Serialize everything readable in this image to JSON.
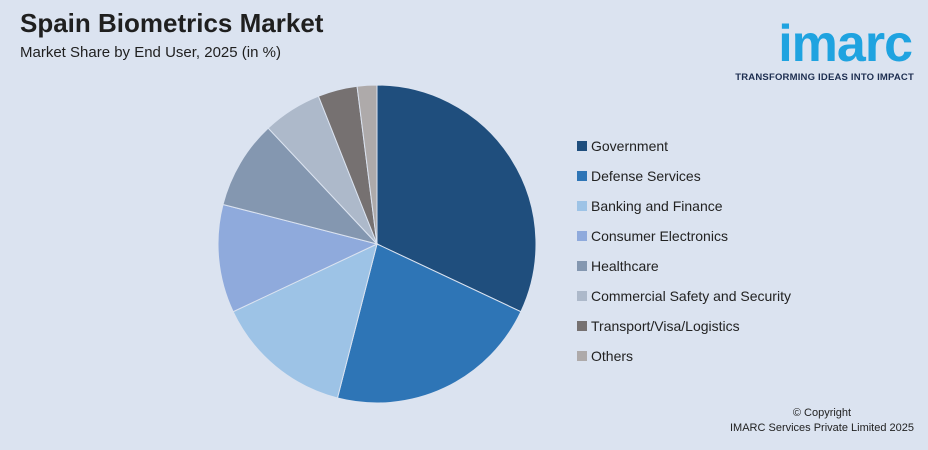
{
  "header": {
    "title": "Spain Biometrics Market",
    "subtitle": "Market Share by End User, 2025 (in %)"
  },
  "logo": {
    "wordmark": "imarc",
    "tagline": "TRANSFORMING IDEAS INTO IMPACT",
    "color": "#1fa3e0"
  },
  "chart_data": {
    "type": "pie",
    "title": "Spain Biometrics Market",
    "subtitle": "Market Share by End User, 2025 (in %)",
    "legend_position": "right",
    "categories": [
      "Government",
      "Defense Services",
      "Banking and Finance",
      "Consumer Electronics",
      "Healthcare",
      "Commercial Safety and Security",
      "Transport/Visa/Logistics",
      "Others"
    ],
    "values": [
      32,
      22,
      14,
      11,
      9,
      6,
      4,
      2
    ],
    "colors": [
      "#1f4e7d",
      "#2e75b6",
      "#9dc3e6",
      "#8faadc",
      "#8497b0",
      "#adb9ca",
      "#767171",
      "#aeaaaa"
    ]
  },
  "footer": {
    "line1": "© Copyright",
    "line2": "IMARC Services Private Limited 2025"
  }
}
